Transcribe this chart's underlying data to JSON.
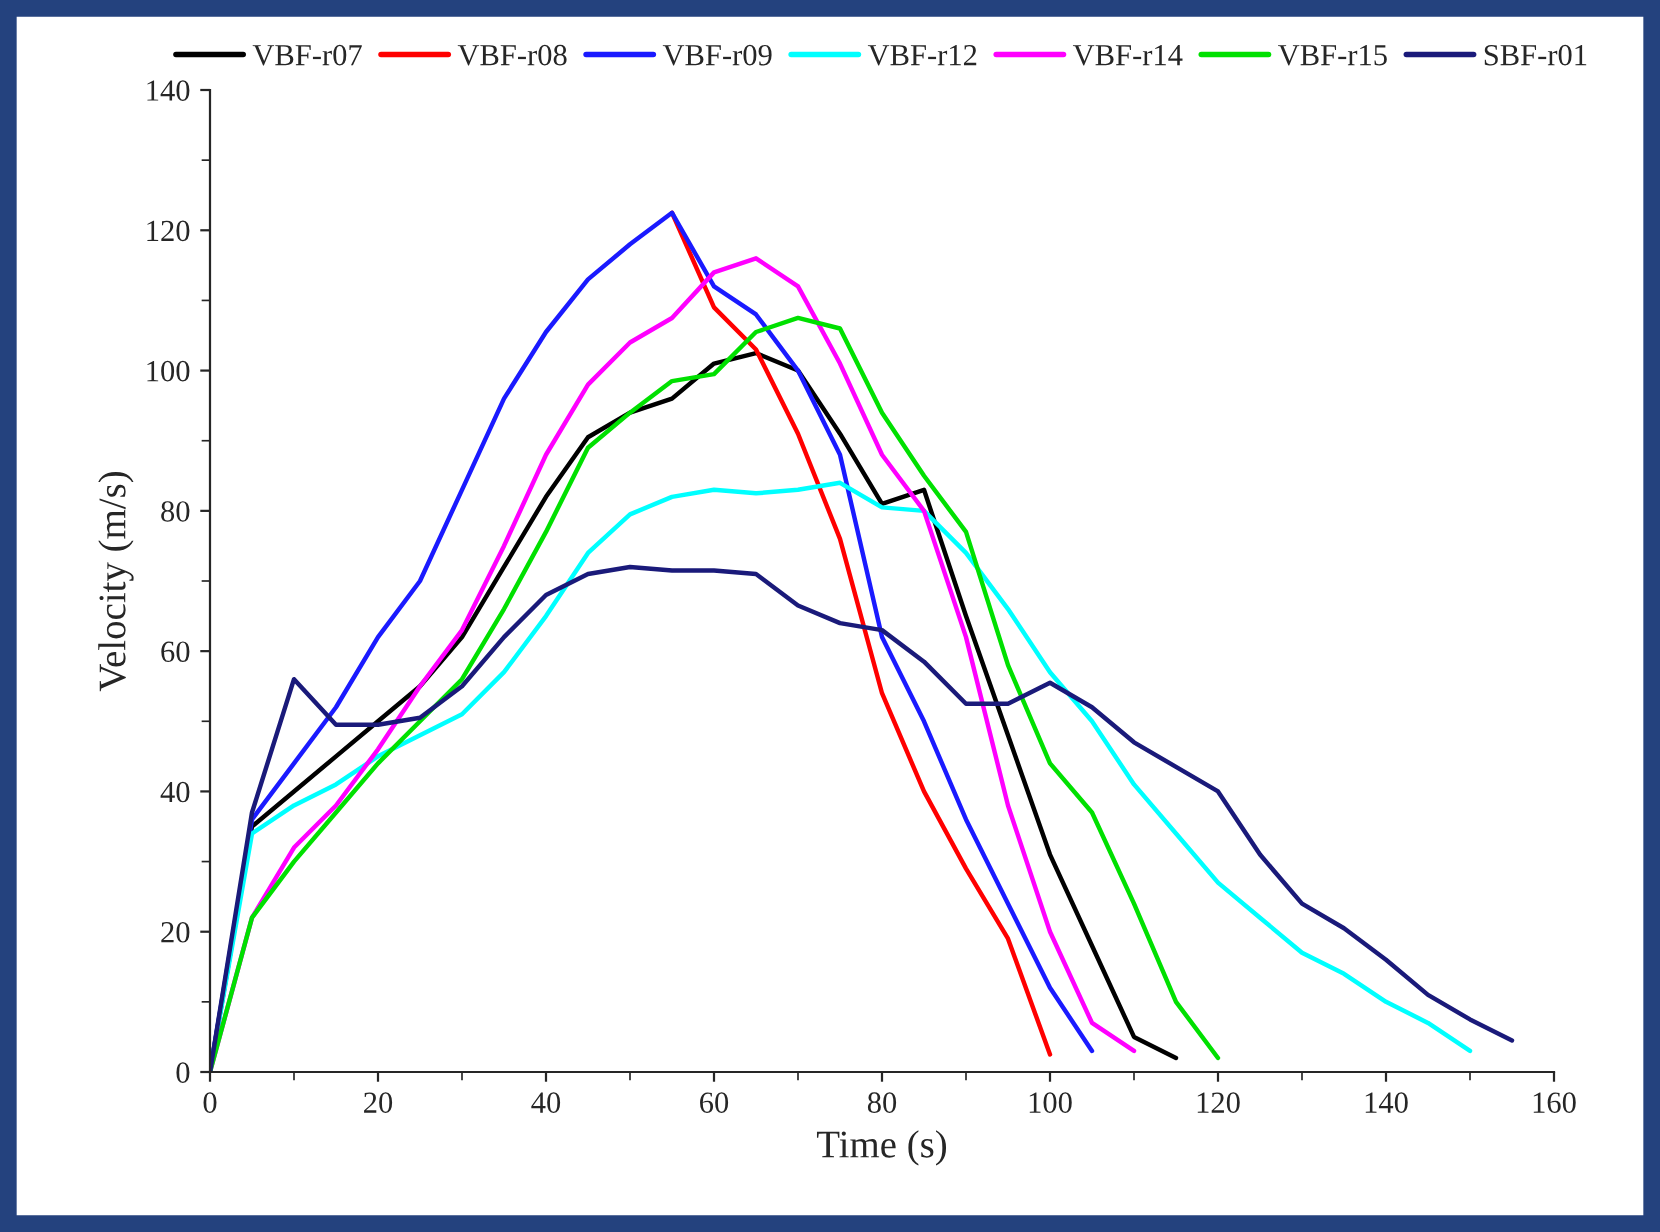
{
  "chart_data": {
    "type": "line",
    "xlabel": "Time (s)",
    "ylabel": "Velocity (m/s)",
    "xlim": [
      0,
      160
    ],
    "ylim": [
      0,
      140
    ],
    "xticks": [
      0,
      20,
      40,
      60,
      80,
      100,
      120,
      140,
      160
    ],
    "yticks": [
      0,
      20,
      40,
      60,
      80,
      100,
      120,
      140
    ],
    "grid": false,
    "legend": "top",
    "marker": "none",
    "line_style": "solid",
    "series": [
      {
        "name": "VBF-r07",
        "color": "#000000",
        "x": [
          0,
          5,
          10,
          15,
          20,
          25,
          30,
          35,
          40,
          45,
          50,
          55,
          60,
          65,
          70,
          75,
          80,
          85,
          90,
          95,
          100,
          105,
          110,
          115
        ],
        "values": [
          0,
          35,
          40,
          45,
          50,
          55,
          62,
          72,
          82,
          90.5,
          94,
          96,
          101,
          102.5,
          100,
          91,
          81,
          83,
          65,
          48,
          31,
          18,
          5,
          2
        ]
      },
      {
        "name": "VBF-r08",
        "color": "#ff0000",
        "x": [
          55,
          60,
          65,
          70,
          75,
          80,
          85,
          90,
          95,
          100
        ],
        "values": [
          122.5,
          109,
          103,
          91,
          76,
          54,
          40,
          29,
          19,
          2.5
        ]
      },
      {
        "name": "VBF-r09",
        "color": "#1a1aff",
        "x": [
          0,
          5,
          10,
          15,
          20,
          25,
          30,
          35,
          40,
          45,
          50,
          55,
          60,
          65,
          70,
          75,
          80,
          85,
          90,
          95,
          100,
          105
        ],
        "values": [
          0,
          36,
          44,
          52,
          62,
          70,
          83,
          96,
          105.5,
          113,
          118,
          122.5,
          112,
          108,
          100,
          88,
          62,
          50,
          36,
          24,
          12,
          3
        ]
      },
      {
        "name": "VBF-r12",
        "color": "#00ffff",
        "x": [
          0,
          5,
          10,
          15,
          20,
          25,
          30,
          35,
          40,
          45,
          50,
          55,
          60,
          65,
          70,
          75,
          80,
          85,
          90,
          95,
          100,
          105,
          110,
          115,
          120,
          125,
          130,
          135,
          140,
          145,
          150
        ],
        "values": [
          0,
          34,
          38,
          41,
          45,
          48,
          51,
          57,
          65,
          74,
          79.5,
          82,
          83,
          82.5,
          83,
          84,
          80.5,
          80,
          74,
          66,
          57,
          50,
          41,
          34,
          27,
          22,
          17,
          14,
          10,
          7,
          3
        ]
      },
      {
        "name": "VBF-r14",
        "color": "#ff00ff",
        "x": [
          0,
          5,
          10,
          15,
          20,
          25,
          30,
          35,
          40,
          45,
          50,
          55,
          60,
          65,
          70,
          75,
          80,
          85,
          90,
          95,
          100,
          105,
          110
        ],
        "values": [
          0,
          22,
          32,
          38,
          46,
          55,
          63,
          75,
          88,
          98,
          104,
          107.5,
          114,
          116,
          112,
          101,
          88,
          80,
          62,
          38,
          20,
          7,
          3
        ]
      },
      {
        "name": "VBF-r15",
        "color": "#00e000",
        "x": [
          0,
          5,
          10,
          15,
          20,
          25,
          30,
          35,
          40,
          45,
          50,
          55,
          60,
          65,
          70,
          75,
          80,
          85,
          90,
          95,
          100,
          105,
          110,
          115,
          120
        ],
        "values": [
          0,
          22,
          30,
          37,
          44,
          50,
          56,
          66,
          77,
          89,
          94,
          98.5,
          99.5,
          105.5,
          107.5,
          106,
          94,
          85,
          77,
          58,
          44,
          37,
          24,
          10,
          2
        ]
      },
      {
        "name": "SBF-r01",
        "color": "#1a1a7a",
        "x": [
          0,
          5,
          10,
          15,
          20,
          25,
          30,
          35,
          40,
          45,
          50,
          55,
          60,
          65,
          70,
          75,
          80,
          85,
          90,
          95,
          100,
          105,
          110,
          115,
          120,
          125,
          130,
          135,
          140,
          145,
          150,
          155
        ],
        "values": [
          0,
          37,
          56,
          49.5,
          49.5,
          50.5,
          55,
          62,
          68,
          71,
          72,
          71.5,
          71.5,
          71,
          66.5,
          64,
          63,
          58.5,
          52.5,
          52.5,
          55.5,
          52,
          47,
          43.5,
          40,
          31,
          24,
          20.5,
          16,
          11,
          7.5,
          4.5
        ]
      }
    ]
  }
}
